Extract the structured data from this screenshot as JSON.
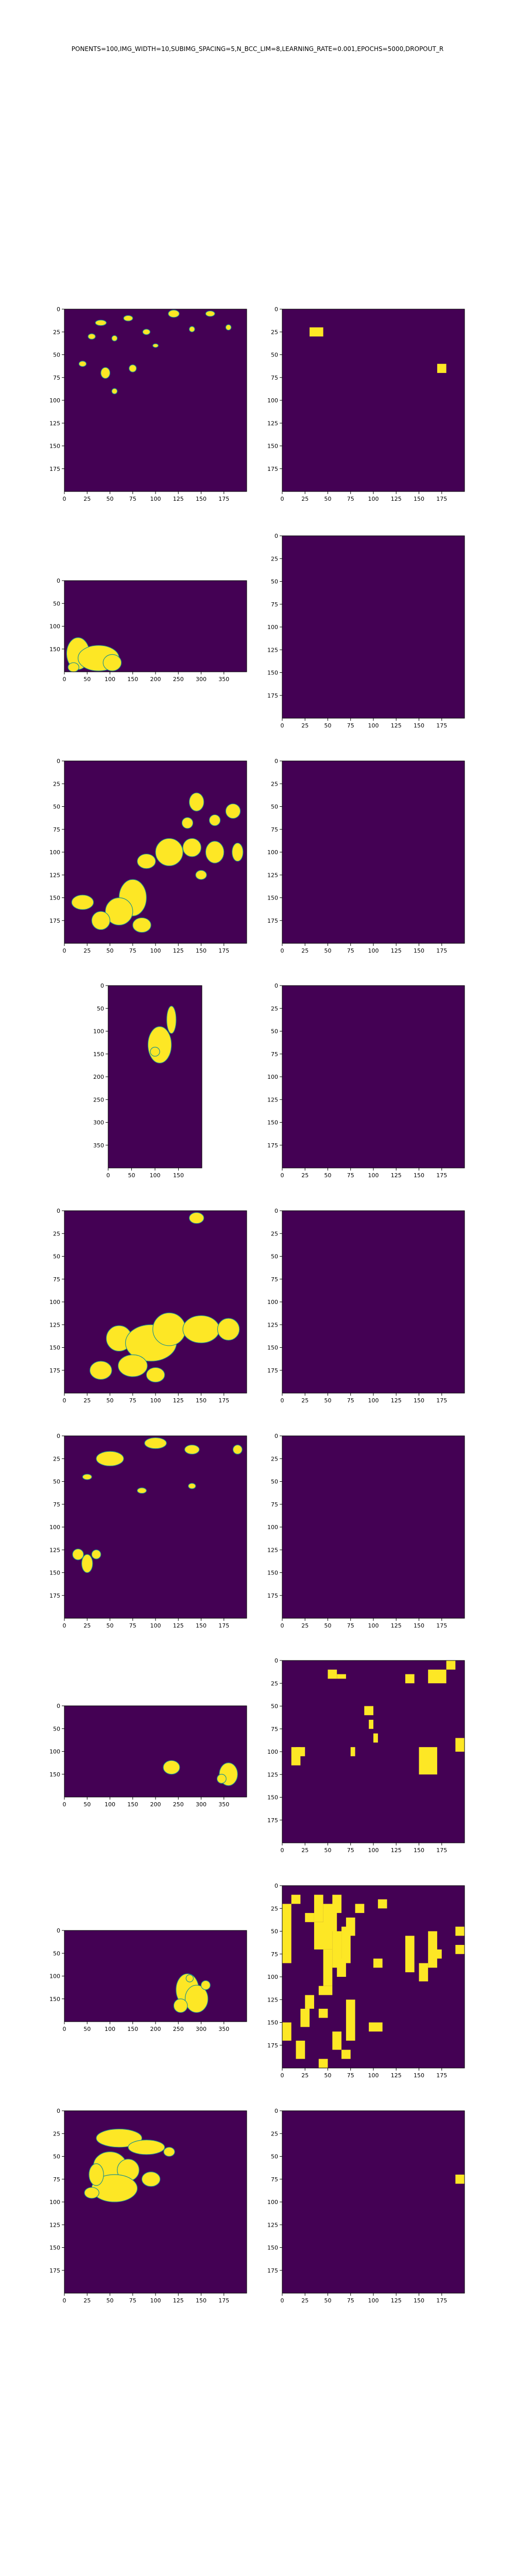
{
  "figure": {
    "title": "PONENTS=100,IMG_WIDTH=10,SUBIMG_SPACING=5,N_BCC_LIM=8,LEARNING_RATE=0.001,EPOCHS=5000,DROPOUT_R",
    "colors": {
      "background": "#440154",
      "foreground": "#fde725",
      "edge": "#21918c",
      "frame": "#000000"
    }
  },
  "chart_data": [
    {
      "type": "heatmap",
      "xlim": [
        0,
        199
      ],
      "ylim": [
        199,
        0
      ],
      "x_ticks": [
        "0",
        "25",
        "50",
        "75",
        "100",
        "125",
        "150",
        "175"
      ],
      "y_ticks": [
        "0",
        "25",
        "50",
        "75",
        "100",
        "125",
        "150",
        "175"
      ],
      "blobs": [
        [
          40,
          15,
          6,
          3
        ],
        [
          70,
          10,
          5,
          3
        ],
        [
          120,
          5,
          6,
          4
        ],
        [
          160,
          5,
          5,
          3
        ],
        [
          30,
          30,
          4,
          3
        ],
        [
          55,
          32,
          3,
          3
        ],
        [
          90,
          25,
          4,
          3
        ],
        [
          140,
          22,
          3,
          3
        ],
        [
          180,
          20,
          3,
          3
        ],
        [
          20,
          60,
          4,
          3
        ],
        [
          45,
          70,
          5,
          6
        ],
        [
          75,
          65,
          4,
          4
        ],
        [
          55,
          90,
          3,
          3
        ],
        [
          100,
          40,
          3,
          2
        ]
      ]
    },
    {
      "type": "heatmap",
      "xlim": [
        0,
        199
      ],
      "ylim": [
        199,
        0
      ],
      "x_ticks": [
        "0",
        "25",
        "50",
        "75",
        "100",
        "125",
        "150",
        "175"
      ],
      "y_ticks": [
        "0",
        "25",
        "50",
        "75",
        "100",
        "125",
        "150",
        "175"
      ],
      "blocks": [
        [
          30,
          20,
          15,
          10
        ],
        [
          170,
          60,
          10,
          10
        ]
      ]
    },
    {
      "type": "heatmap",
      "xlim": [
        0,
        399
      ],
      "ylim": [
        199,
        0
      ],
      "x_ticks": [
        "0",
        "50",
        "100",
        "150",
        "200",
        "250",
        "300",
        "350"
      ],
      "y_ticks": [
        "0",
        "50",
        "100",
        "150"
      ],
      "blobs": [
        [
          30,
          160,
          25,
          35
        ],
        [
          75,
          170,
          45,
          28
        ],
        [
          105,
          180,
          20,
          18
        ],
        [
          20,
          190,
          12,
          10
        ]
      ]
    },
    {
      "type": "heatmap",
      "xlim": [
        0,
        199
      ],
      "ylim": [
        199,
        0
      ],
      "x_ticks": [
        "0",
        "25",
        "50",
        "75",
        "100",
        "125",
        "150",
        "175"
      ],
      "y_ticks": [
        "0",
        "25",
        "50",
        "75",
        "100",
        "125",
        "150",
        "175"
      ],
      "blocks": []
    },
    {
      "type": "heatmap",
      "xlim": [
        0,
        199
      ],
      "ylim": [
        199,
        0
      ],
      "x_ticks": [
        "0",
        "25",
        "50",
        "75",
        "100",
        "125",
        "150",
        "175"
      ],
      "y_ticks": [
        "0",
        "25",
        "50",
        "75",
        "100",
        "125",
        "150",
        "175"
      ],
      "blobs": [
        [
          145,
          45,
          8,
          10
        ],
        [
          185,
          55,
          8,
          8
        ],
        [
          135,
          68,
          6,
          6
        ],
        [
          165,
          65,
          6,
          6
        ],
        [
          115,
          100,
          15,
          15
        ],
        [
          140,
          95,
          10,
          10
        ],
        [
          165,
          100,
          10,
          12
        ],
        [
          190,
          100,
          6,
          10
        ],
        [
          90,
          110,
          10,
          8
        ],
        [
          75,
          150,
          15,
          20
        ],
        [
          60,
          165,
          15,
          15
        ],
        [
          40,
          175,
          10,
          10
        ],
        [
          20,
          155,
          12,
          8
        ],
        [
          85,
          180,
          10,
          8
        ],
        [
          150,
          125,
          6,
          5
        ]
      ]
    },
    {
      "type": "heatmap",
      "xlim": [
        0,
        199
      ],
      "ylim": [
        199,
        0
      ],
      "x_ticks": [
        "0",
        "25",
        "50",
        "75",
        "100",
        "125",
        "150",
        "175"
      ],
      "y_ticks": [
        "0",
        "25",
        "50",
        "75",
        "100",
        "125",
        "150",
        "175"
      ],
      "blocks": []
    },
    {
      "type": "heatmap",
      "xlim": [
        0,
        199
      ],
      "ylim": [
        399,
        0
      ],
      "x_ticks": [
        "0",
        "50",
        "100",
        "150"
      ],
      "y_ticks": [
        "0",
        "50",
        "100",
        "150",
        "200",
        "250",
        "300",
        "350"
      ],
      "blobs": [
        [
          110,
          130,
          25,
          40
        ],
        [
          135,
          75,
          10,
          30
        ],
        [
          100,
          145,
          10,
          10
        ]
      ]
    },
    {
      "type": "heatmap",
      "xlim": [
        0,
        199
      ],
      "ylim": [
        199,
        0
      ],
      "x_ticks": [
        "0",
        "25",
        "50",
        "75",
        "100",
        "125",
        "150",
        "175"
      ],
      "y_ticks": [
        "0",
        "25",
        "50",
        "75",
        "100",
        "125",
        "150",
        "175"
      ],
      "blocks": []
    },
    {
      "type": "heatmap",
      "xlim": [
        0,
        199
      ],
      "ylim": [
        199,
        0
      ],
      "x_ticks": [
        "0",
        "25",
        "50",
        "75",
        "100",
        "125",
        "150",
        "175"
      ],
      "y_ticks": [
        "0",
        "25",
        "50",
        "75",
        "100",
        "125",
        "150",
        "175"
      ],
      "blobs": [
        [
          145,
          8,
          8,
          6
        ],
        [
          60,
          140,
          14,
          14
        ],
        [
          95,
          145,
          28,
          20
        ],
        [
          115,
          130,
          18,
          18
        ],
        [
          150,
          130,
          20,
          15
        ],
        [
          180,
          130,
          12,
          12
        ],
        [
          75,
          170,
          16,
          12
        ],
        [
          40,
          175,
          12,
          10
        ],
        [
          100,
          180,
          10,
          8
        ]
      ]
    },
    {
      "type": "heatmap",
      "xlim": [
        0,
        199
      ],
      "ylim": [
        199,
        0
      ],
      "x_ticks": [
        "0",
        "25",
        "50",
        "75",
        "100",
        "125",
        "150",
        "175"
      ],
      "y_ticks": [
        "0",
        "25",
        "50",
        "75",
        "100",
        "125",
        "150",
        "175"
      ],
      "blocks": []
    },
    {
      "type": "heatmap",
      "xlim": [
        0,
        199
      ],
      "ylim": [
        199,
        0
      ],
      "x_ticks": [
        "0",
        "25",
        "50",
        "75",
        "100",
        "125",
        "150",
        "175"
      ],
      "y_ticks": [
        "0",
        "25",
        "50",
        "75",
        "100",
        "125",
        "150",
        "175"
      ],
      "blobs": [
        [
          100,
          8,
          12,
          6
        ],
        [
          140,
          15,
          8,
          5
        ],
        [
          190,
          15,
          5,
          5
        ],
        [
          50,
          25,
          15,
          8
        ],
        [
          25,
          45,
          5,
          3
        ],
        [
          85,
          60,
          5,
          3
        ],
        [
          140,
          55,
          4,
          3
        ],
        [
          15,
          130,
          6,
          6
        ],
        [
          25,
          140,
          6,
          10
        ],
        [
          35,
          130,
          5,
          5
        ]
      ]
    },
    {
      "type": "heatmap",
      "xlim": [
        0,
        199
      ],
      "ylim": [
        199,
        0
      ],
      "x_ticks": [
        "0",
        "25",
        "50",
        "75",
        "100",
        "125",
        "150",
        "175"
      ],
      "y_ticks": [
        "0",
        "25",
        "50",
        "75",
        "100",
        "125",
        "150",
        "175"
      ],
      "blocks": []
    },
    {
      "type": "heatmap",
      "xlim": [
        0,
        399
      ],
      "ylim": [
        199,
        0
      ],
      "x_ticks": [
        "0",
        "50",
        "100",
        "150",
        "200",
        "250",
        "300",
        "350"
      ],
      "y_ticks": [
        "0",
        "50",
        "100",
        "150"
      ],
      "blobs": [
        [
          235,
          135,
          18,
          15
        ],
        [
          360,
          150,
          20,
          25
        ],
        [
          345,
          160,
          10,
          10
        ]
      ]
    },
    {
      "type": "heatmap",
      "xlim": [
        0,
        199
      ],
      "ylim": [
        199,
        0
      ],
      "x_ticks": [
        "0",
        "25",
        "50",
        "75",
        "100",
        "125",
        "150",
        "175"
      ],
      "y_ticks": [
        "0",
        "25",
        "50",
        "75",
        "100",
        "125",
        "150",
        "175"
      ],
      "blocks": [
        [
          50,
          10,
          10,
          10
        ],
        [
          60,
          15,
          10,
          5
        ],
        [
          90,
          50,
          10,
          10
        ],
        [
          95,
          65,
          5,
          10
        ],
        [
          100,
          80,
          5,
          10
        ],
        [
          75,
          95,
          5,
          10
        ],
        [
          135,
          15,
          10,
          10
        ],
        [
          160,
          10,
          20,
          15
        ],
        [
          180,
          0,
          10,
          10
        ],
        [
          150,
          95,
          20,
          30
        ],
        [
          190,
          85,
          10,
          15
        ],
        [
          10,
          95,
          10,
          20
        ],
        [
          15,
          95,
          10,
          10
        ]
      ]
    },
    {
      "type": "heatmap",
      "xlim": [
        0,
        399
      ],
      "ylim": [
        199,
        0
      ],
      "x_ticks": [
        "0",
        "50",
        "100",
        "150",
        "200",
        "250",
        "300",
        "350"
      ],
      "y_ticks": [
        "0",
        "50",
        "100",
        "150"
      ],
      "blobs": [
        [
          270,
          130,
          25,
          35
        ],
        [
          290,
          150,
          25,
          30
        ],
        [
          255,
          165,
          15,
          15
        ],
        [
          310,
          120,
          10,
          10
        ],
        [
          275,
          105,
          8,
          8
        ]
      ]
    },
    {
      "type": "heatmap",
      "xlim": [
        0,
        199
      ],
      "ylim": [
        199,
        0
      ],
      "x_ticks": [
        "0",
        "25",
        "50",
        "75",
        "100",
        "125",
        "150",
        "175"
      ],
      "y_ticks": [
        "0",
        "25",
        "50",
        "75",
        "100",
        "125",
        "150",
        "175"
      ],
      "blocks": [
        [
          0,
          20,
          10,
          65
        ],
        [
          10,
          10,
          10,
          10
        ],
        [
          25,
          30,
          10,
          10
        ],
        [
          35,
          10,
          10,
          30
        ],
        [
          45,
          20,
          15,
          30
        ],
        [
          55,
          10,
          10,
          20
        ],
        [
          35,
          40,
          20,
          30
        ],
        [
          45,
          70,
          10,
          40
        ],
        [
          55,
          50,
          10,
          40
        ],
        [
          65,
          45,
          10,
          40
        ],
        [
          70,
          35,
          10,
          20
        ],
        [
          60,
          80,
          10,
          20
        ],
        [
          80,
          20,
          10,
          10
        ],
        [
          105,
          15,
          10,
          10
        ],
        [
          100,
          80,
          10,
          10
        ],
        [
          135,
          55,
          10,
          40
        ],
        [
          160,
          50,
          10,
          40
        ],
        [
          150,
          85,
          10,
          20
        ],
        [
          165,
          70,
          10,
          10
        ],
        [
          190,
          45,
          10,
          10
        ],
        [
          190,
          65,
          10,
          10
        ],
        [
          0,
          150,
          10,
          20
        ],
        [
          20,
          135,
          10,
          20
        ],
        [
          15,
          170,
          10,
          20
        ],
        [
          40,
          190,
          10,
          10
        ],
        [
          55,
          160,
          10,
          20
        ],
        [
          65,
          180,
          10,
          10
        ],
        [
          70,
          125,
          10,
          45
        ],
        [
          40,
          135,
          10,
          10
        ],
        [
          95,
          150,
          15,
          10
        ],
        [
          25,
          120,
          10,
          15
        ],
        [
          40,
          110,
          15,
          10
        ]
      ]
    },
    {
      "type": "heatmap",
      "xlim": [
        0,
        199
      ],
      "ylim": [
        199,
        0
      ],
      "x_ticks": [
        "0",
        "25",
        "50",
        "75",
        "100",
        "125",
        "150",
        "175"
      ],
      "y_ticks": [
        "0",
        "25",
        "50",
        "75",
        "100",
        "125",
        "150",
        "175"
      ],
      "blobs": [
        [
          60,
          30,
          25,
          10
        ],
        [
          90,
          40,
          20,
          8
        ],
        [
          50,
          60,
          18,
          15
        ],
        [
          70,
          65,
          12,
          12
        ],
        [
          55,
          85,
          25,
          15
        ],
        [
          95,
          75,
          10,
          8
        ],
        [
          35,
          70,
          8,
          12
        ],
        [
          30,
          90,
          8,
          6
        ],
        [
          115,
          45,
          6,
          5
        ]
      ]
    },
    {
      "type": "heatmap",
      "xlim": [
        0,
        199
      ],
      "ylim": [
        199,
        0
      ],
      "x_ticks": [
        "0",
        "25",
        "50",
        "75",
        "100",
        "125",
        "150",
        "175"
      ],
      "y_ticks": [
        "0",
        "25",
        "50",
        "75",
        "100",
        "125",
        "150",
        "175"
      ],
      "blocks": [
        [
          190,
          70,
          10,
          10
        ]
      ]
    }
  ]
}
